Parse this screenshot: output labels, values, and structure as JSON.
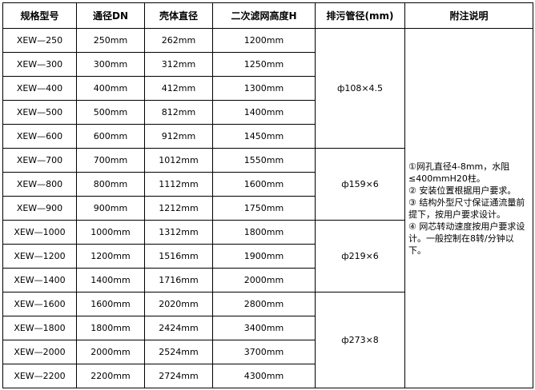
{
  "headers": [
    "规格型号",
    "通径DN",
    "壳体直径",
    "二次滤网高度H",
    "排污管径(mm)",
    "附注说明"
  ],
  "rows": [
    [
      "XEW—250",
      "250mm",
      "262mm",
      "1200mm"
    ],
    [
      "XEW—300",
      "300mm",
      "312mm",
      "1250mm"
    ],
    [
      "XEW—400",
      "400mm",
      "412mm",
      "1300mm"
    ],
    [
      "XEW—500",
      "500mm",
      "812mm",
      "1400mm"
    ],
    [
      "XEW—600",
      "600mm",
      "912mm",
      "1450mm"
    ],
    [
      "XEW—700",
      "700mm",
      "1012mm",
      "1550mm"
    ],
    [
      "XEW—800",
      "800mm",
      "1112mm",
      "1600mm"
    ],
    [
      "XEW—900",
      "900mm",
      "1212mm",
      "1750mm"
    ],
    [
      "XEW—1000",
      "1000mm",
      "1312mm",
      "1800mm"
    ],
    [
      "XEW—1200",
      "1200mm",
      "1516mm",
      "1900mm"
    ],
    [
      "XEW—1400",
      "1400mm",
      "1716mm",
      "2000mm"
    ],
    [
      "XEW—1600",
      "1600mm",
      "2020mm",
      "2800mm"
    ],
    [
      "XEW—1800",
      "1800mm",
      "2424mm",
      "3400mm"
    ],
    [
      "XEW—2000",
      "2000mm",
      "2524mm",
      "3700mm"
    ],
    [
      "XEW—2200",
      "2200mm",
      "2724mm",
      "4300mm"
    ]
  ],
  "drain_groups": [
    {
      "value": "ф108×4.5",
      "span": 5
    },
    {
      "value": "ф159×6",
      "span": 3
    },
    {
      "value": "ф219×6",
      "span": 3
    },
    {
      "value": "ф273×8",
      "span": 4
    }
  ],
  "notes": [
    "①网孔直径4-8mm，水阻≤400mmH20柱。",
    "② 安装位置根据用户要求。",
    "③ 结构外型尺寸保证通流量前提下，按用户要求设计。",
    "④ 网芯转动速度按用户要求设计。一般控制在8转/分钟以下。"
  ]
}
